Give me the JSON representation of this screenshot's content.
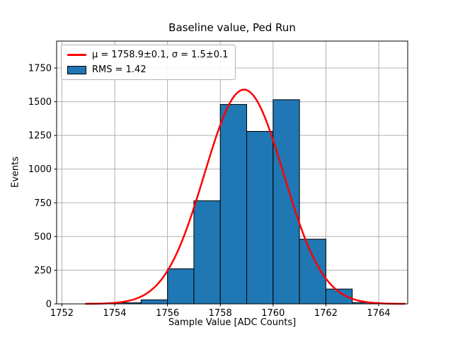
{
  "chart_data": {
    "type": "bar",
    "subtype": "histogram-with-gaussian-fit",
    "title": "Baseline value, Ped Run",
    "xlabel": "Sample Value [ADC Counts]",
    "ylabel": "Events",
    "xlim": [
      1751.8,
      1765.1
    ],
    "ylim": [
      0,
      1950
    ],
    "xticks": [
      1752,
      1754,
      1756,
      1758,
      1760,
      1762,
      1764
    ],
    "yticks": [
      0,
      250,
      500,
      750,
      1000,
      1250,
      1500,
      1750
    ],
    "grid": true,
    "grid_color": "#b0b0b0",
    "bin_edges": [
      1753,
      1754,
      1755,
      1756,
      1757,
      1758,
      1759,
      1760,
      1761,
      1762,
      1763,
      1764,
      1765
    ],
    "counts": [
      5,
      8,
      30,
      260,
      765,
      1480,
      1280,
      1515,
      480,
      110,
      10,
      3
    ],
    "bar_color": "#1f77b4",
    "bar_edge_color": "#000000",
    "fit": {
      "type": "gaussian",
      "mu": 1758.9,
      "sigma": 1.5,
      "amplitude": 1590,
      "color": "#ff0000"
    },
    "legend": {
      "position": "upper left",
      "entries": [
        {
          "swatch": "line",
          "color": "#ff0000",
          "label": "μ = 1758.9±0.1, σ = 1.5±0.1"
        },
        {
          "swatch": "patch",
          "color": "#1f77b4",
          "label": "RMS = 1.42"
        }
      ]
    }
  }
}
